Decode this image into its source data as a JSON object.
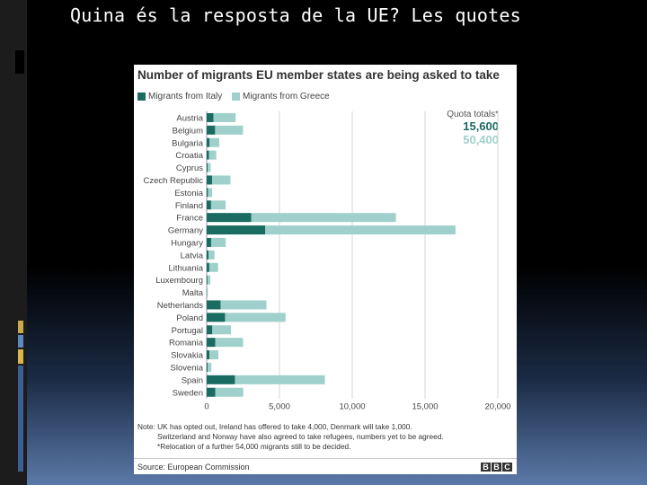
{
  "slide": {
    "title": "Quina és la resposta de la UE? Les quotes"
  },
  "chart_data": {
    "type": "bar",
    "orientation": "horizontal",
    "stacked": true,
    "title": "Number of migrants EU member states are being asked to take",
    "categories": [
      "Austria",
      "Belgium",
      "Bulgaria",
      "Croatia",
      "Cyprus",
      "Czech Republic",
      "Estonia",
      "Finland",
      "France",
      "Germany",
      "Hungary",
      "Latvia",
      "Lithuania",
      "Luxembourg",
      "Malta",
      "Netherlands",
      "Poland",
      "Portugal",
      "Romania",
      "Slovakia",
      "Slovenia",
      "Spain",
      "Sweden"
    ],
    "series": [
      {
        "name": "Migrants from Italy",
        "color": "#1a6b62",
        "values": [
          462,
          579,
          201,
          152,
          69,
          376,
          86,
          304,
          3064,
          4027,
          306,
          127,
          180,
          56,
          17,
          955,
          1262,
          388,
          585,
          190,
          73,
          1941,
          586
        ]
      },
      {
        "name": "Migrants from Greece",
        "color": "#9fd0cb",
        "values": [
          1527,
          1913,
          664,
          503,
          205,
          1258,
          287,
          1001,
          9935,
          13065,
          1003,
          409,
          602,
          192,
          57,
          3152,
          4155,
          1281,
          1914,
          612,
          245,
          6181,
          1927
        ]
      }
    ],
    "xlim": [
      0,
      20000
    ],
    "xticks": [
      "0",
      "5,000",
      "10,000",
      "15,000",
      "20,000"
    ],
    "gridlines": true,
    "legend": "top-left",
    "quota": {
      "label": "Quota totals*",
      "italy": "15,600",
      "greece": "50,400"
    },
    "notes": [
      "Note: UK has opted out, Ireland has offered to take 4,000, Denmark will take 1,000.",
      "Switzerland and Norway have also agreed to take refugees, numbers yet to be agreed.",
      "*Relocation of a further 54,000 migrants still to be decided."
    ],
    "source": "Source: European Commission",
    "logo": [
      "B",
      "B",
      "C"
    ]
  }
}
